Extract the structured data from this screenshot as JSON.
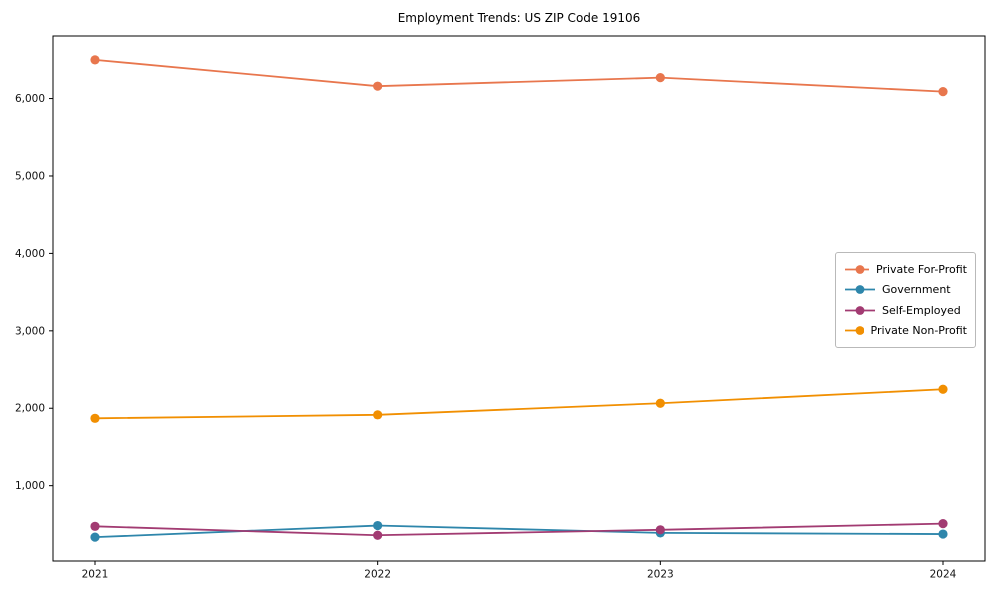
{
  "title": "Employment Trends: US ZIP Code 19106",
  "chart_data": {
    "type": "line",
    "categories": [
      "2021",
      "2022",
      "2023",
      "2024"
    ],
    "series": [
      {
        "name": "Private For-Profit",
        "color": "#E8764D",
        "values": [
          6500,
          6160,
          6270,
          6090
        ]
      },
      {
        "name": "Government",
        "color": "#2E86AB",
        "values": [
          335,
          485,
          390,
          375
        ]
      },
      {
        "name": "Self-Employed",
        "color": "#A23B72",
        "values": [
          475,
          360,
          430,
          510
        ]
      },
      {
        "name": "Private Non-Profit",
        "color": "#F18F01",
        "values": [
          1870,
          1915,
          2065,
          2245
        ]
      }
    ],
    "title": "Employment Trends: US ZIP Code 19106",
    "xlabel": "",
    "ylabel": "",
    "ylim": [
      27,
      6808
    ],
    "yticks": [
      1000,
      2000,
      3000,
      4000,
      5000,
      6000
    ],
    "ytick_labels": [
      "1,000",
      "2,000",
      "3,000",
      "4,000",
      "5,000",
      "6,000"
    ],
    "grid": false,
    "marker": "circle",
    "legend_position": "right-center"
  }
}
